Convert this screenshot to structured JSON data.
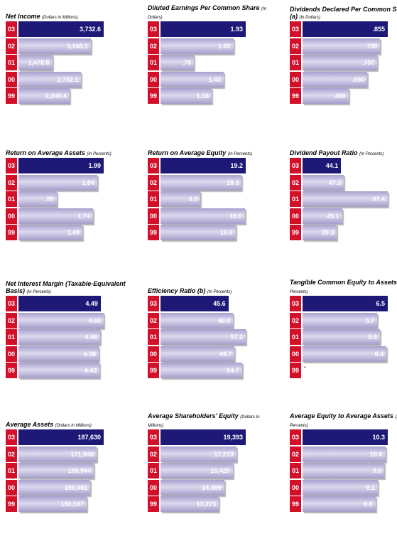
{
  "chart_data": [
    {
      "type": "bar",
      "title": "Net Income",
      "unit": "(Dollars in Millions)",
      "categories": [
        "03",
        "02",
        "01",
        "00",
        "99"
      ],
      "values": [
        3732.6,
        3168.1,
        1478.8,
        2752.1,
        2240.4
      ],
      "labels": [
        "3,732.6",
        "3,168.1",
        "1,478.8",
        "2,752.1",
        "2,240.4"
      ],
      "max": 3732.6
    },
    {
      "type": "bar",
      "title": "Diluted Earnings Per Common Share",
      "unit": "(In Dollars)",
      "categories": [
        "03",
        "02",
        "01",
        "00",
        "99"
      ],
      "values": [
        1.93,
        1.65,
        0.76,
        1.43,
        1.16
      ],
      "labels": [
        "1.93",
        "1.65",
        ".76",
        "1.43",
        "1.16"
      ],
      "max": 1.93
    },
    {
      "type": "bar",
      "title": "Dividends Declared Per Common Share (a)",
      "unit": "(In Dollars)",
      "categories": [
        "03",
        "02",
        "01",
        "00",
        "99"
      ],
      "values": [
        0.855,
        0.78,
        0.75,
        0.65,
        0.46
      ],
      "labels": [
        ".855",
        ".780",
        ".750",
        ".650",
        ".460"
      ],
      "max": 0.855
    },
    {
      "type": "bar",
      "title": "Return on Average Assets",
      "unit": "(In Percents)",
      "categories": [
        "03",
        "02",
        "01",
        "00",
        "99"
      ],
      "values": [
        1.99,
        1.84,
        0.89,
        1.74,
        1.49
      ],
      "labels": [
        "1.99",
        "1.84",
        ".89",
        "1.74",
        "1.49"
      ],
      "max": 1.99
    },
    {
      "type": "bar",
      "title": "Return on Average Equity",
      "unit": "(In Percents)",
      "categories": [
        "03",
        "02",
        "01",
        "00",
        "99"
      ],
      "values": [
        19.2,
        18.3,
        9.0,
        19.0,
        16.9
      ],
      "labels": [
        "19.2",
        "18.3",
        "9.0",
        "19.0",
        "16.9"
      ],
      "max": 19.2
    },
    {
      "type": "bar",
      "title": "Dividend Payout Ratio",
      "unit": "(In Percents)",
      "categories": [
        "03",
        "02",
        "01",
        "00",
        "99"
      ],
      "values": [
        44.1,
        47.3,
        97.4,
        45.1,
        39.3
      ],
      "labels": [
        "44.1",
        "47.3",
        "97.4",
        "45.1",
        "39.3"
      ],
      "max": 97.4
    },
    {
      "type": "bar",
      "title": "Net Interest Margin (Taxable-Equivalent Basis)",
      "unit": "(In Percents)",
      "categories": [
        "03",
        "02",
        "01",
        "00",
        "99"
      ],
      "values": [
        4.49,
        4.65,
        4.46,
        4.38,
        4.43
      ],
      "labels": [
        "4.49",
        "4.65",
        "4.46",
        "4.38",
        "4.43"
      ],
      "max": 4.65
    },
    {
      "type": "bar",
      "title": "Efficiency Ratio (b)",
      "unit": "(In Percents)",
      "categories": [
        "03",
        "02",
        "01",
        "00",
        "99"
      ],
      "values": [
        45.6,
        48.8,
        57.2,
        49.7,
        54.7
      ],
      "labels": [
        "45.6",
        "48.8",
        "57.2",
        "49.7",
        "54.7"
      ],
      "max": 57.2
    },
    {
      "type": "bar",
      "title": "Tangible Common Equity to Assets",
      "unit": "(In Percents)",
      "categories": [
        "03",
        "02",
        "01",
        "00",
        "99"
      ],
      "values": [
        6.5,
        5.7,
        5.9,
        6.4,
        null
      ],
      "labels": [
        "6.5",
        "5.7",
        "5.9",
        "6.4",
        "*"
      ],
      "max": 6.5
    },
    {
      "type": "bar",
      "title": "Average Assets",
      "unit": "(Dollars In Millions)",
      "categories": [
        "03",
        "02",
        "01",
        "00",
        "99"
      ],
      "values": [
        187630,
        171948,
        165944,
        158481,
        150167
      ],
      "labels": [
        "187,630",
        "171,948",
        "165,944",
        "158,481",
        "150,167"
      ],
      "max": 187630
    },
    {
      "type": "bar",
      "title": "Average Shareholders' Equity",
      "unit": "(Dollars In Millions)",
      "categories": [
        "03",
        "02",
        "01",
        "00",
        "99"
      ],
      "values": [
        19393,
        17273,
        16426,
        14499,
        13273
      ],
      "labels": [
        "19,393",
        "17,273",
        "16,426",
        "14,499",
        "13,273"
      ],
      "max": 19393
    },
    {
      "type": "bar",
      "title": "Average Equity to Average Assets",
      "unit": "(In Percents)",
      "categories": [
        "03",
        "02",
        "01",
        "00",
        "99"
      ],
      "values": [
        10.3,
        10.0,
        9.9,
        9.1,
        8.8
      ],
      "labels": [
        "10.3",
        "10.0",
        "9.9",
        "9.1",
        "8.8"
      ],
      "max": 10.3
    }
  ]
}
